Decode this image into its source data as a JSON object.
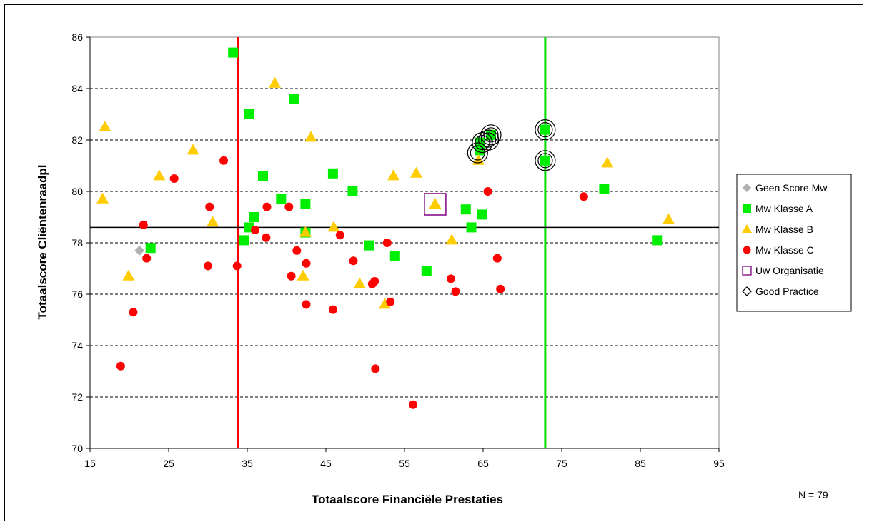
{
  "chart_data": {
    "type": "scatter",
    "xlabel": "Totaalscore Financiële Prestaties",
    "ylabel": "Totaalscore Cliëntenraadpl",
    "xlim": [
      15,
      95
    ],
    "ylim": [
      70,
      86
    ],
    "xticks": [
      "15",
      "25",
      "35",
      "45",
      "55",
      "65",
      "75",
      "85",
      "95"
    ],
    "yticks": [
      "70",
      "72",
      "74",
      "76",
      "78",
      "80",
      "82",
      "84",
      "86"
    ],
    "grid": "horizontal dashed",
    "legend_position": "right",
    "note": "N = 79",
    "reference_lines": [
      {
        "orientation": "vertical",
        "value": 33.8,
        "color": "#ff0000"
      },
      {
        "orientation": "vertical",
        "value": 72.9,
        "color": "#00dd00"
      },
      {
        "orientation": "horizontal",
        "value": 78.6,
        "color": "#000000"
      }
    ],
    "series": [
      {
        "name": "Geen Score Mw",
        "marker": "diamond",
        "color": "#b0b0b0",
        "points": [
          [
            21.3,
            77.7
          ]
        ]
      },
      {
        "name": "Mw Klasse A",
        "marker": "square",
        "color": "#00ee00",
        "points": [
          [
            22.7,
            77.8
          ],
          [
            33.2,
            85.4
          ],
          [
            34.6,
            78.1
          ],
          [
            35.2,
            83.0
          ],
          [
            35.2,
            78.6
          ],
          [
            35.9,
            79.0
          ],
          [
            37.0,
            80.6
          ],
          [
            39.3,
            79.7
          ],
          [
            41.0,
            83.6
          ],
          [
            42.4,
            79.5
          ],
          [
            42.4,
            78.4
          ],
          [
            45.9,
            80.7
          ],
          [
            48.4,
            80.0
          ],
          [
            50.5,
            77.9
          ],
          [
            53.8,
            77.5
          ],
          [
            57.8,
            76.9
          ],
          [
            62.8,
            79.3
          ],
          [
            63.5,
            78.6
          ],
          [
            64.6,
            81.6
          ],
          [
            64.6,
            81.9
          ],
          [
            64.9,
            79.1
          ],
          [
            66.0,
            82.2
          ],
          [
            72.9,
            82.4
          ],
          [
            72.9,
            81.2
          ],
          [
            80.4,
            80.1
          ],
          [
            87.2,
            78.1
          ]
        ]
      },
      {
        "name": "Mw Klasse B",
        "marker": "triangle",
        "color": "#ffcc00",
        "points": [
          [
            16.6,
            79.7
          ],
          [
            16.9,
            82.5
          ],
          [
            19.9,
            76.7
          ],
          [
            23.8,
            80.6
          ],
          [
            28.1,
            81.6
          ],
          [
            30.6,
            78.8
          ],
          [
            38.5,
            84.2
          ],
          [
            42.1,
            76.7
          ],
          [
            42.4,
            78.4
          ],
          [
            43.1,
            82.1
          ],
          [
            46.0,
            78.6
          ],
          [
            49.3,
            76.4
          ],
          [
            52.5,
            75.6
          ],
          [
            53.6,
            80.6
          ],
          [
            56.5,
            80.7
          ],
          [
            58.9,
            79.5
          ],
          [
            61.0,
            78.1
          ],
          [
            64.4,
            81.2
          ],
          [
            80.8,
            81.1
          ],
          [
            88.6,
            78.9
          ]
        ]
      },
      {
        "name": "Mw Klasse C",
        "marker": "circle",
        "color": "#ff0000",
        "points": [
          [
            18.9,
            73.2
          ],
          [
            20.5,
            75.3
          ],
          [
            21.8,
            78.7
          ],
          [
            22.2,
            77.4
          ],
          [
            25.7,
            80.5
          ],
          [
            30.0,
            77.1
          ],
          [
            30.2,
            79.4
          ],
          [
            32.0,
            81.2
          ],
          [
            33.7,
            77.1
          ],
          [
            36.0,
            78.5
          ],
          [
            37.4,
            78.2
          ],
          [
            37.5,
            79.4
          ],
          [
            40.3,
            79.4
          ],
          [
            40.6,
            76.7
          ],
          [
            41.3,
            77.7
          ],
          [
            42.5,
            77.2
          ],
          [
            42.5,
            75.6
          ],
          [
            45.9,
            75.4
          ],
          [
            46.8,
            78.3
          ],
          [
            48.5,
            77.3
          ],
          [
            50.9,
            76.4
          ],
          [
            51.2,
            76.5
          ],
          [
            51.3,
            73.1
          ],
          [
            52.8,
            78.0
          ],
          [
            53.2,
            75.7
          ],
          [
            56.1,
            71.7
          ],
          [
            60.9,
            76.6
          ],
          [
            61.5,
            76.1
          ],
          [
            65.6,
            80.0
          ],
          [
            66.8,
            77.4
          ],
          [
            67.2,
            76.2
          ],
          [
            77.8,
            79.8
          ]
        ]
      },
      {
        "name": "Uw Organisatie",
        "marker": "open-square",
        "color": "#800080",
        "points": [
          [
            58.9,
            79.5
          ]
        ]
      },
      {
        "name": "Good Practice",
        "marker": "open-circle",
        "color": "#000000",
        "points": [
          [
            64.3,
            81.5
          ],
          [
            64.9,
            81.9
          ],
          [
            65.7,
            82.0
          ],
          [
            66.0,
            82.2
          ],
          [
            72.9,
            82.4
          ],
          [
            72.9,
            81.2
          ]
        ]
      }
    ]
  }
}
